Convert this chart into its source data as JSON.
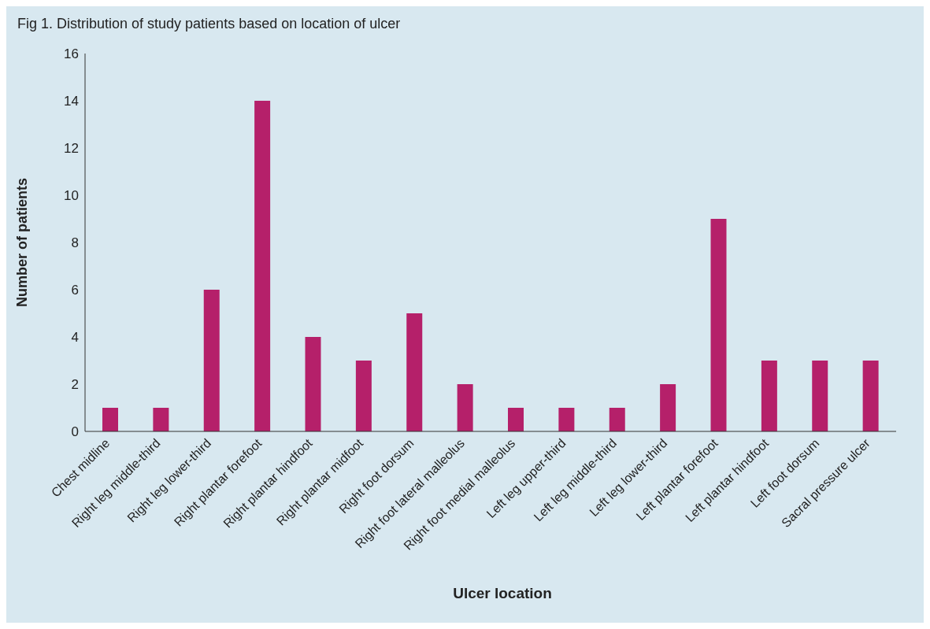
{
  "chart_data": {
    "type": "bar",
    "title": "Fig 1. Distribution of study patients based on location of ulcer",
    "categories": [
      "Chest midline",
      "Right leg middle-third",
      "Right leg lower-third",
      "Right plantar forefoot",
      "Right plantar hindfoot",
      "Right plantar midfoot",
      "Right foot dorsum",
      "Right foot lateral malleolus",
      "Right foot medial malleolus",
      "Left leg upper-third",
      "Left leg middle-third",
      "Left leg lower-third",
      "Left plantar forefoot",
      "Left plantar hindfoot",
      "Left foot dorsum",
      "Sacral pressure ulcer"
    ],
    "values": [
      1,
      1,
      6,
      14,
      4,
      3,
      5,
      2,
      1,
      1,
      1,
      2,
      9,
      3,
      3,
      3
    ],
    "color": "#b5206a",
    "xlabel": "Ulcer location",
    "ylabel": "Number of patients",
    "ylim": [
      0,
      16
    ],
    "yticks": [
      0,
      2,
      4,
      6,
      8,
      10,
      12,
      14,
      16
    ],
    "grid": false,
    "legend": false
  }
}
